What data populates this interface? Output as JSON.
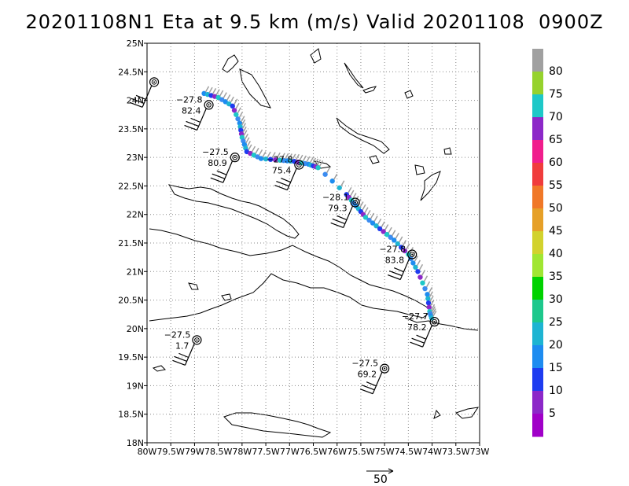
{
  "title": "20201108N1 Eta at 9.5 km (m/s) Valid 20201108  0900Z",
  "map": {
    "lon_range": [
      -80,
      -73
    ],
    "lat_range": [
      18,
      25
    ],
    "lat_ticks": [
      {
        "lat": 25,
        "label": "25N"
      },
      {
        "lat": 24.5,
        "label": "24.5N"
      },
      {
        "lat": 24,
        "label": "24N"
      },
      {
        "lat": 23.5,
        "label": "23.5N"
      },
      {
        "lat": 23,
        "label": "23N"
      },
      {
        "lat": 22.5,
        "label": "22.5N"
      },
      {
        "lat": 22,
        "label": "22N"
      },
      {
        "lat": 21.5,
        "label": "21.5N"
      },
      {
        "lat": 21,
        "label": "21N"
      },
      {
        "lat": 20.5,
        "label": "20.5N"
      },
      {
        "lat": 20,
        "label": "20N"
      },
      {
        "lat": 19.5,
        "label": "19.5N"
      },
      {
        "lat": 19,
        "label": "19N"
      },
      {
        "lat": 18.5,
        "label": "18.5N"
      },
      {
        "lat": 18,
        "label": "18N"
      }
    ],
    "lon_ticks": [
      {
        "lon": -80,
        "label": "80W"
      },
      {
        "lon": -79.5,
        "label": "79.5W"
      },
      {
        "lon": -79,
        "label": "79W"
      },
      {
        "lon": -78.5,
        "label": "78.5W"
      },
      {
        "lon": -78,
        "label": "78W"
      },
      {
        "lon": -77.5,
        "label": "77.5W"
      },
      {
        "lon": -77,
        "label": "77W"
      },
      {
        "lon": -76.5,
        "label": "76.5W"
      },
      {
        "lon": -76,
        "label": "76W"
      },
      {
        "lon": -75.5,
        "label": "75.5W"
      },
      {
        "lon": -75,
        "label": "75W"
      },
      {
        "lon": -74.5,
        "label": "74.5W"
      },
      {
        "lon": -74,
        "label": "74W"
      },
      {
        "lon": -73.5,
        "label": "73.5W"
      },
      {
        "lon": -73,
        "label": "73W"
      }
    ],
    "grid": "dotted"
  },
  "colorbar": {
    "labels": [
      "80",
      "75",
      "70",
      "65",
      "60",
      "55",
      "50",
      "45",
      "40",
      "35",
      "30",
      "25",
      "20",
      "15",
      "10",
      "5"
    ],
    "colors": [
      "#a0a0a0",
      "#96d22d",
      "#1ec8c8",
      "#8c28c8",
      "#f01e8c",
      "#f03c3c",
      "#f07828",
      "#e6a028",
      "#d2d22d",
      "#a0e632",
      "#00d200",
      "#1ec88c",
      "#1eb4d2",
      "#1e8cf0",
      "#1e3cf0",
      "#8c28c8",
      "#a000c8"
    ]
  },
  "stations": [
    {
      "lon": -79.85,
      "lat": 24.32,
      "t": "",
      "z": ""
    },
    {
      "lon": -78.7,
      "lat": 23.92,
      "t": "−27.8",
      "z": "82.4"
    },
    {
      "lon": -78.15,
      "lat": 23.0,
      "t": "−27.5",
      "z": "80.9"
    },
    {
      "lon": -76.8,
      "lat": 22.87,
      "t": "−27.8",
      "z": "75.4"
    },
    {
      "lon": -75.62,
      "lat": 22.21,
      "t": "−28.1",
      "z": "79.3"
    },
    {
      "lon": -74.42,
      "lat": 21.3,
      "t": "−27.8",
      "z": "83.8"
    },
    {
      "lon": -73.95,
      "lat": 20.12,
      "t": "−27.7",
      "z": "78.2"
    },
    {
      "lon": -78.95,
      "lat": 19.8,
      "t": "−27.5",
      "z": "1.7"
    },
    {
      "lon": -75.0,
      "lat": 19.3,
      "t": "−27.5",
      "z": "69.2"
    }
  ],
  "reference_vector": {
    "label": "50"
  }
}
